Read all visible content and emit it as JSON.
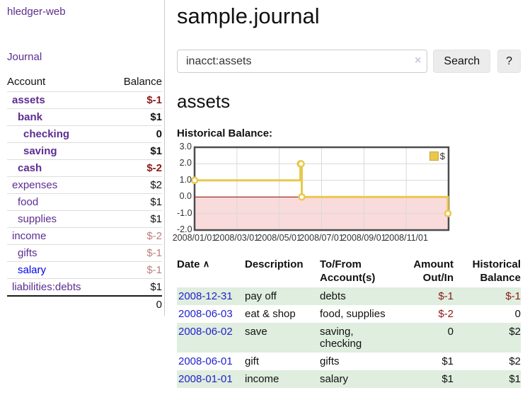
{
  "app": {
    "brand": "hledger-web",
    "nav": {
      "journal": "Journal"
    }
  },
  "colors": {
    "link_purple": "#5c2d91",
    "link_blue_unvisited": "#0000ee",
    "table_date_blue": "#2222cc",
    "negative_strong": "#8b1a1a",
    "negative_muted": "#bf7d7d",
    "row_stripe_green": "#dfeedf",
    "chart_line_yellow": "#e9c84d",
    "chart_negative_pink": "#f9dbdb",
    "chart_zero_line": "#8b0000"
  },
  "sidebar": {
    "header": {
      "account": "Account",
      "balance": "Balance"
    },
    "accounts": [
      {
        "name": "assets",
        "balance": "$-1"
      },
      {
        "name": "bank",
        "balance": "$1"
      },
      {
        "name": "checking",
        "balance": "0"
      },
      {
        "name": "saving",
        "balance": "$1"
      },
      {
        "name": "cash",
        "balance": "$-2"
      },
      {
        "name": "expenses",
        "balance": "$2"
      },
      {
        "name": "food",
        "balance": "$1"
      },
      {
        "name": "supplies",
        "balance": "$1"
      },
      {
        "name": "income",
        "balance": "$-2"
      },
      {
        "name": "gifts",
        "balance": "$-1"
      },
      {
        "name": "salary",
        "balance": "$-1"
      },
      {
        "name": "liabilities:debts",
        "balance": "$1"
      }
    ],
    "total": "0"
  },
  "main": {
    "title": "sample.journal",
    "search": {
      "value": "inacct:assets",
      "clear_icon": "×",
      "button_label": "Search",
      "help_label": "?"
    },
    "section_title": "assets",
    "chart_title": "Historical Balance:"
  },
  "chart_data": {
    "type": "line",
    "step": true,
    "title": "Historical Balance",
    "series": [
      {
        "name": "$",
        "color": "#e9c84d",
        "points": [
          {
            "date": "2008-01-01",
            "value": 1
          },
          {
            "date": "2008-06-01",
            "value": 2
          },
          {
            "date": "2008-06-02",
            "value": 2
          },
          {
            "date": "2008-06-03",
            "value": 0
          },
          {
            "date": "2008-12-31",
            "value": -1
          }
        ]
      }
    ],
    "x_ticks": [
      "2008/01/01",
      "2008/03/01",
      "2008/05/01",
      "2008/07/01",
      "2008/09/01",
      "2008/11/01"
    ],
    "y_ticks": [
      3,
      2,
      1,
      0,
      -1,
      -2
    ],
    "ylim": [
      -2,
      3
    ],
    "x_range_months": 12,
    "grid": true,
    "legend_position": "top-right",
    "negative_region_color": "#f9dbdb",
    "zero_line_color": "#8b0000",
    "border_color": "#4d4d4d"
  },
  "register": {
    "columns": {
      "date": "Date",
      "sort_icon": "∧",
      "description": "Description",
      "accounts": "To/From Account(s)",
      "amount": "Amount Out/In",
      "balance": "Historical Balance"
    },
    "rows": [
      {
        "date": "2008-12-31",
        "description": "pay off",
        "accounts": "debts",
        "amount": "$-1",
        "balance": "$-1"
      },
      {
        "date": "2008-06-03",
        "description": "eat & shop",
        "accounts": "food, supplies",
        "amount": "$-2",
        "balance": "0"
      },
      {
        "date": "2008-06-02",
        "description": "save",
        "accounts": "saving, checking",
        "amount": "0",
        "balance": "$2"
      },
      {
        "date": "2008-06-01",
        "description": "gift",
        "accounts": "gifts",
        "amount": "$1",
        "balance": "$2"
      },
      {
        "date": "2008-01-01",
        "description": "income",
        "accounts": "salary",
        "amount": "$1",
        "balance": "$1"
      }
    ]
  }
}
